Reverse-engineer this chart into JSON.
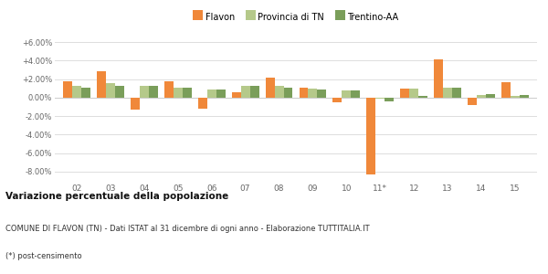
{
  "categories": [
    "02",
    "03",
    "04",
    "05",
    "06",
    "07",
    "08",
    "09",
    "10",
    "11*",
    "12",
    "13",
    "14",
    "15"
  ],
  "flavon": [
    1.8,
    2.9,
    -1.3,
    1.75,
    -1.2,
    0.6,
    2.2,
    1.1,
    -0.55,
    -8.3,
    1.0,
    4.1,
    -0.85,
    1.7
  ],
  "provincia": [
    1.25,
    1.6,
    1.3,
    1.05,
    0.9,
    1.25,
    1.25,
    1.0,
    0.8,
    -0.1,
    1.0,
    1.05,
    0.25,
    0.2
  ],
  "trentino": [
    1.1,
    1.25,
    1.25,
    1.05,
    0.9,
    1.3,
    1.1,
    0.9,
    0.8,
    -0.4,
    0.2,
    1.1,
    0.35,
    0.3
  ],
  "flavon_color": "#f0883a",
  "provincia_color": "#b5c98a",
  "trentino_color": "#7a9e5a",
  "bg_color": "#ffffff",
  "grid_color": "#dddddd",
  "ylim": [
    -9.0,
    7.0
  ],
  "yticks": [
    -8.0,
    -6.0,
    -4.0,
    -2.0,
    0.0,
    2.0,
    4.0,
    6.0
  ],
  "legend_labels": [
    "Flavon",
    "Provincia di TN",
    "Trentino-AA"
  ],
  "title": "Variazione percentuale della popolazione",
  "subtitle1": "COMUNE DI FLAVON (TN) - Dati ISTAT al 31 dicembre di ogni anno - Elaborazione TUTTITALIA.IT",
  "subtitle2": "(*) post-censimento",
  "bar_width": 0.27
}
